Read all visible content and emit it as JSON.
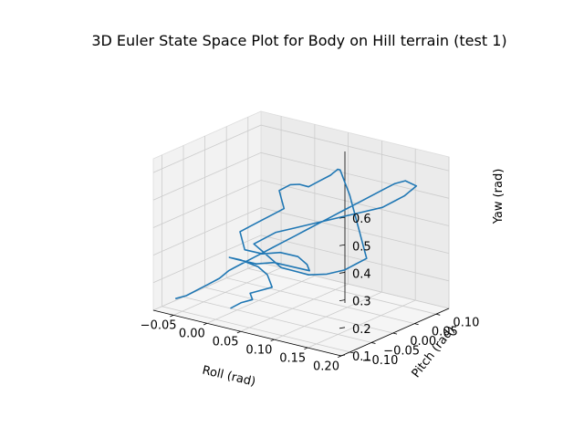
{
  "chart_data": {
    "type": "line",
    "projection": "3d",
    "title": "3D Euler State Space Plot for Body on Hill terrain (test 1)",
    "xlabel": "Roll (rad)",
    "ylabel": "Pitch (rad)",
    "zlabel": "Yaw (rad)",
    "xlim": [
      -0.08,
      0.2
    ],
    "ylim": [
      -0.12,
      0.13
    ],
    "zlim": [
      0.1,
      0.65
    ],
    "xticks": [
      "−0.05",
      "0.00",
      "0.05",
      "0.10",
      "0.15",
      "0.20"
    ],
    "yticks": [
      "−0.10",
      "−0.05",
      "0.00",
      "0.05",
      "0.10"
    ],
    "zticks": [
      "0.1",
      "0.2",
      "0.3",
      "0.4",
      "0.5",
      "0.6"
    ],
    "grid": true,
    "series": [
      {
        "color": "#1f77b4",
        "points": [
          [
            -0.01,
            -0.05,
            0.1
          ],
          [
            0.0,
            -0.04,
            0.12
          ],
          [
            0.01,
            -0.03,
            0.13
          ],
          [
            0.0,
            -0.02,
            0.14
          ],
          [
            0.01,
            -0.01,
            0.15
          ],
          [
            0.02,
            0.0,
            0.16
          ],
          [
            0.01,
            0.01,
            0.17
          ],
          [
            0.0,
            0.02,
            0.18
          ],
          [
            -0.02,
            0.03,
            0.19
          ],
          [
            -0.04,
            0.02,
            0.21
          ],
          [
            -0.05,
            0.01,
            0.22
          ],
          [
            -0.03,
            0.0,
            0.23
          ],
          [
            -0.01,
            0.01,
            0.22
          ],
          [
            0.01,
            0.02,
            0.23
          ],
          [
            0.03,
            0.03,
            0.22
          ],
          [
            0.05,
            0.04,
            0.21
          ],
          [
            0.04,
            0.05,
            0.22
          ],
          [
            0.02,
            0.06,
            0.23
          ],
          [
            0.0,
            0.05,
            0.24
          ],
          [
            -0.02,
            0.04,
            0.23
          ],
          [
            -0.04,
            0.03,
            0.24
          ],
          [
            -0.05,
            0.04,
            0.26
          ],
          [
            -0.06,
            0.05,
            0.28
          ],
          [
            -0.05,
            0.06,
            0.3
          ],
          [
            -0.04,
            0.07,
            0.32
          ],
          [
            -0.03,
            0.08,
            0.34
          ],
          [
            -0.02,
            0.09,
            0.36
          ],
          [
            -0.03,
            0.1,
            0.38
          ],
          [
            -0.04,
            0.11,
            0.4
          ],
          [
            -0.03,
            0.12,
            0.42
          ],
          [
            -0.01,
            0.11,
            0.44
          ],
          [
            0.01,
            0.1,
            0.45
          ],
          [
            0.02,
            0.11,
            0.47
          ],
          [
            0.03,
            0.12,
            0.49
          ],
          [
            0.04,
            0.11,
            0.51
          ],
          [
            0.05,
            0.1,
            0.53
          ],
          [
            0.06,
            0.09,
            0.55
          ],
          [
            0.07,
            0.08,
            0.56
          ],
          [
            0.08,
            0.07,
            0.55
          ],
          [
            0.09,
            0.06,
            0.54
          ],
          [
            0.1,
            0.05,
            0.53
          ],
          [
            0.11,
            0.04,
            0.52
          ],
          [
            0.12,
            0.03,
            0.5
          ],
          [
            0.13,
            0.02,
            0.48
          ],
          [
            0.14,
            0.01,
            0.46
          ],
          [
            0.15,
            0.0,
            0.44
          ],
          [
            0.16,
            -0.01,
            0.42
          ],
          [
            0.17,
            -0.02,
            0.4
          ],
          [
            0.18,
            -0.03,
            0.38
          ],
          [
            0.17,
            -0.04,
            0.36
          ],
          [
            0.16,
            -0.05,
            0.34
          ],
          [
            0.14,
            -0.06,
            0.32
          ],
          [
            0.12,
            -0.05,
            0.3
          ],
          [
            0.1,
            -0.04,
            0.28
          ],
          [
            0.08,
            -0.03,
            0.27
          ],
          [
            0.06,
            -0.02,
            0.26
          ],
          [
            0.04,
            -0.01,
            0.25
          ],
          [
            0.02,
            0.0,
            0.26
          ],
          [
            0.0,
            0.01,
            0.27
          ],
          [
            -0.02,
            0.02,
            0.28
          ],
          [
            -0.01,
            0.03,
            0.3
          ],
          [
            0.0,
            0.04,
            0.32
          ],
          [
            0.02,
            0.05,
            0.34
          ],
          [
            0.04,
            0.06,
            0.36
          ],
          [
            0.06,
            0.07,
            0.38
          ],
          [
            0.08,
            0.08,
            0.4
          ],
          [
            0.1,
            0.09,
            0.42
          ],
          [
            0.12,
            0.1,
            0.44
          ],
          [
            0.13,
            0.11,
            0.46
          ],
          [
            0.14,
            0.12,
            0.48
          ],
          [
            0.15,
            0.11,
            0.5
          ],
          [
            0.16,
            0.1,
            0.52
          ],
          [
            0.17,
            0.09,
            0.54
          ],
          [
            0.18,
            0.08,
            0.56
          ],
          [
            0.19,
            0.07,
            0.58
          ],
          [
            0.18,
            0.06,
            0.6
          ],
          [
            0.17,
            0.05,
            0.59
          ],
          [
            0.16,
            0.04,
            0.57
          ],
          [
            0.15,
            0.03,
            0.55
          ],
          [
            0.14,
            0.02,
            0.53
          ],
          [
            0.13,
            0.01,
            0.51
          ],
          [
            0.12,
            0.0,
            0.49
          ],
          [
            0.11,
            -0.01,
            0.47
          ],
          [
            0.1,
            -0.02,
            0.45
          ],
          [
            0.09,
            -0.03,
            0.43
          ],
          [
            0.08,
            -0.04,
            0.41
          ],
          [
            0.07,
            -0.05,
            0.39
          ],
          [
            0.06,
            -0.06,
            0.37
          ],
          [
            0.05,
            -0.07,
            0.35
          ],
          [
            0.04,
            -0.08,
            0.33
          ],
          [
            0.03,
            -0.09,
            0.31
          ],
          [
            0.02,
            -0.1,
            0.29
          ],
          [
            0.01,
            -0.09,
            0.27
          ],
          [
            0.0,
            -0.08,
            0.25
          ],
          [
            -0.01,
            -0.07,
            0.23
          ],
          [
            -0.02,
            -0.06,
            0.21
          ],
          [
            -0.03,
            -0.07,
            0.19
          ],
          [
            -0.04,
            -0.08,
            0.17
          ],
          [
            -0.05,
            -0.09,
            0.15
          ],
          [
            -0.06,
            -0.1,
            0.14
          ]
        ]
      }
    ]
  }
}
